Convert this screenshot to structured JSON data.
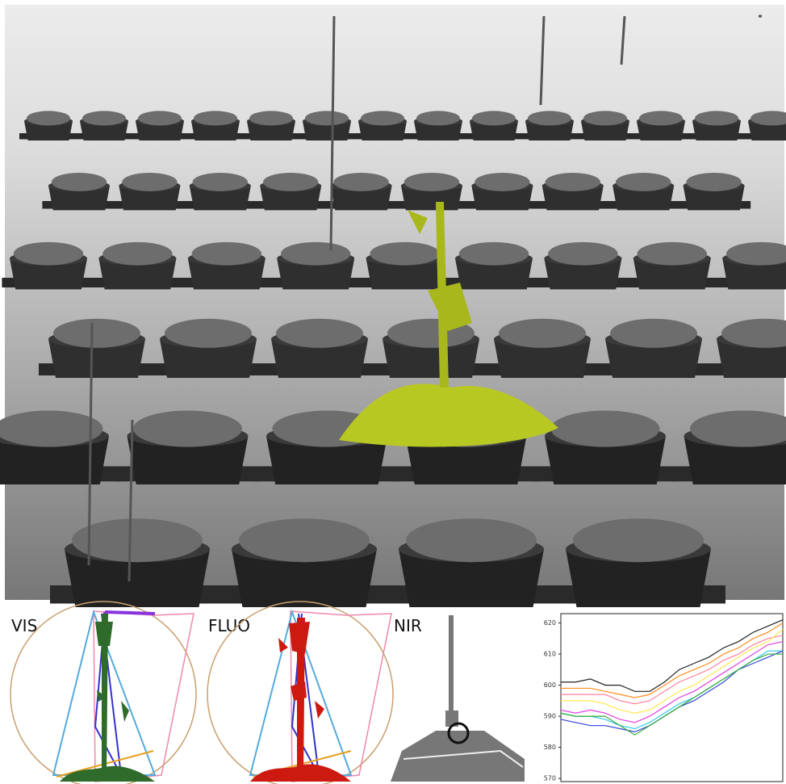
{
  "labels": {
    "vis": "VIS",
    "fluo": "FLUO",
    "nir": "NIR"
  },
  "chart_data": {
    "type": "line",
    "x": [
      0,
      2,
      4,
      6,
      8,
      10,
      12,
      14,
      16,
      18,
      20,
      22,
      24,
      26,
      28,
      30
    ],
    "xlim": [
      0,
      30
    ],
    "ylim": [
      569,
      623
    ],
    "yticks": [
      570,
      580,
      590,
      600,
      610,
      620
    ],
    "series": [
      {
        "color": "#222222",
        "values": [
          601,
          601,
          602,
          600,
          600,
          598,
          598,
          601,
          605,
          607,
          609,
          612,
          614,
          617,
          619,
          621
        ]
      },
      {
        "color": "#ff8c1a",
        "values": [
          599,
          599,
          599,
          598,
          597,
          596,
          597,
          600,
          603,
          605,
          607,
          610,
          612,
          615,
          617,
          620
        ]
      },
      {
        "color": "#ff7fa0",
        "values": [
          597,
          597,
          597,
          597,
          595,
          594,
          595,
          598,
          601,
          603,
          605,
          608,
          610,
          613,
          615,
          616
        ]
      },
      {
        "color": "#ffe84d",
        "values": [
          595,
          595,
          595,
          594,
          592,
          591,
          592,
          595,
          598,
          600,
          603,
          606,
          609,
          612,
          614,
          618
        ]
      },
      {
        "color": "#e040e0",
        "values": [
          592,
          591,
          592,
          591,
          589,
          588,
          590,
          593,
          596,
          598,
          601,
          604,
          607,
          610,
          613,
          614
        ]
      },
      {
        "color": "#33ccee",
        "values": [
          591,
          590,
          590,
          589,
          587,
          586,
          588,
          591,
          594,
          596,
          599,
          602,
          605,
          608,
          611,
          611
        ]
      },
      {
        "color": "#3344dd",
        "values": [
          589,
          588,
          587,
          587,
          586,
          585,
          587,
          590,
          593,
          595,
          598,
          601,
          605,
          607,
          609,
          611
        ]
      },
      {
        "color": "#33aa33",
        "values": [
          591,
          590,
          590,
          590,
          587,
          584,
          587,
          590,
          593,
          596,
          599,
          602,
          605,
          608,
          610,
          610
        ]
      }
    ]
  }
}
